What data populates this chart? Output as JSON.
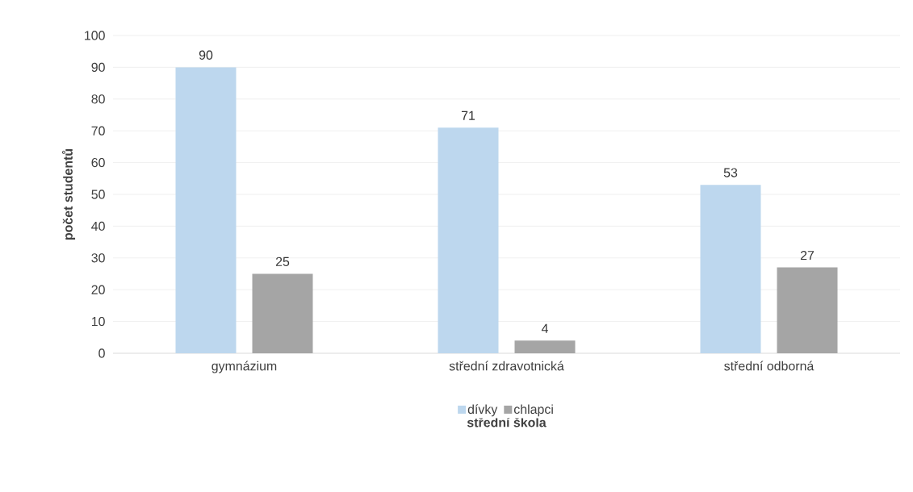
{
  "chart_data": {
    "type": "bar",
    "xlabel": "střední škola",
    "ylabel": "počet studentů",
    "categories": [
      "gymnázium",
      "střední zdravotnická",
      "střední odborná"
    ],
    "series": [
      {
        "name": "dívky",
        "color": "#bdd7ee",
        "values": [
          90,
          71,
          53
        ]
      },
      {
        "name": "chlapci",
        "color": "#a5a5a5",
        "values": [
          25,
          4,
          27
        ]
      }
    ],
    "ylim": [
      0,
      100
    ],
    "yticks": [
      0,
      10,
      20,
      30,
      40,
      50,
      60,
      70,
      80,
      90,
      100
    ],
    "grid": "y",
    "legend": "bottom",
    "data_labels": true
  }
}
